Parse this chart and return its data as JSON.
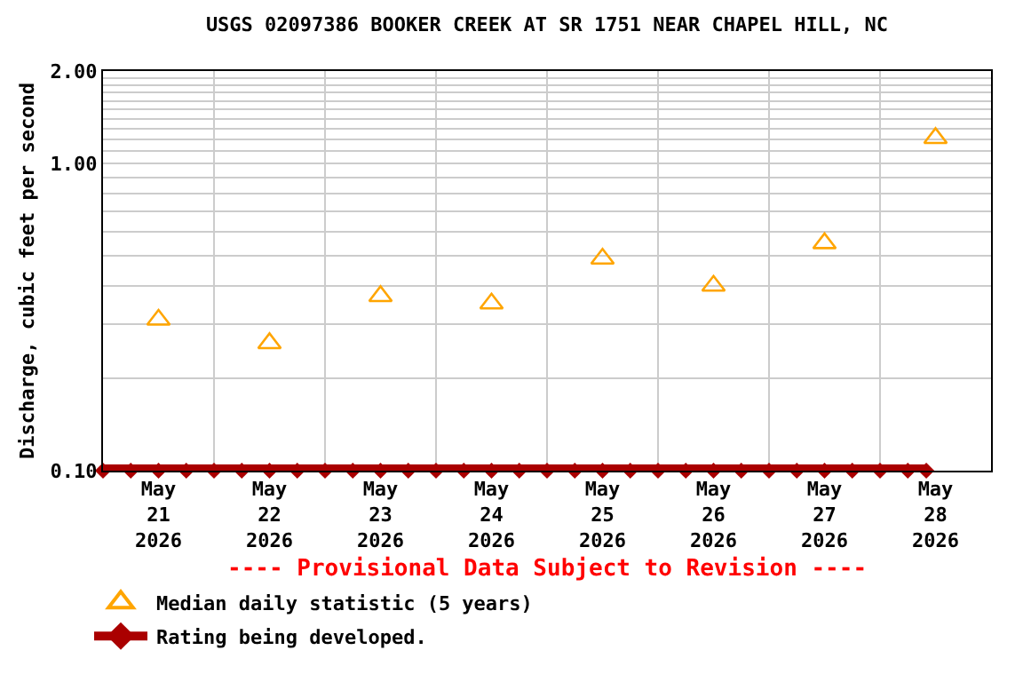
{
  "chart_data": {
    "type": "scatter",
    "title": "USGS 02097386 BOOKER CREEK AT SR 1751 NEAR CHAPEL HILL, NC",
    "ylabel": "Discharge, cubic feet per second",
    "log": "y",
    "grid": true,
    "legend": "bottom left",
    "annotations": [
      "---- Provisional Data Subject to Revision ----"
    ],
    "xlim": [
      "2026-05-21",
      "2026-05-29"
    ],
    "xticks": [
      {
        "value": "2026-05-21T12:00",
        "label": "May\n21\n2026"
      },
      {
        "value": "2026-05-22T12:00",
        "label": "May\n22\n2026"
      },
      {
        "value": "2026-05-23T12:00",
        "label": "May\n23\n2026"
      },
      {
        "value": "2026-05-24T12:00",
        "label": "May\n24\n2026"
      },
      {
        "value": "2026-05-25T12:00",
        "label": "May\n25\n2026"
      },
      {
        "value": "2026-05-26T12:00",
        "label": "May\n26\n2026"
      },
      {
        "value": "2026-05-27T12:00",
        "label": "May\n27\n2026"
      },
      {
        "value": "2026-05-28T12:00",
        "label": "May\n28\n2026"
      },
      {
        "value": "2026-05-22",
        "label": null
      },
      {
        "value": "2026-05-23",
        "label": null
      },
      {
        "value": "2026-05-24",
        "label": null
      },
      {
        "value": "2026-05-25",
        "label": null
      },
      {
        "value": "2026-05-26",
        "label": null
      },
      {
        "value": "2026-05-27",
        "label": null
      },
      {
        "value": "2026-05-28",
        "label": null
      }
    ],
    "ylim": [
      0.1,
      2.0
    ],
    "yticks": [
      {
        "value": 0.1,
        "label": "0.10"
      },
      {
        "value": 0.2,
        "label": null
      },
      {
        "value": 0.3,
        "label": null
      },
      {
        "value": 0.4,
        "label": null
      },
      {
        "value": 0.5,
        "label": null
      },
      {
        "value": 0.6,
        "label": null
      },
      {
        "value": 0.7,
        "label": null
      },
      {
        "value": 0.8,
        "label": null
      },
      {
        "value": 0.9,
        "label": null
      },
      {
        "value": 1.0,
        "label": "1.00"
      },
      {
        "value": 1.1,
        "label": null
      },
      {
        "value": 1.2,
        "label": null
      },
      {
        "value": 1.3,
        "label": null
      },
      {
        "value": 1.4,
        "label": null
      },
      {
        "value": 1.5,
        "label": null
      },
      {
        "value": 1.6,
        "label": null
      },
      {
        "value": 1.7,
        "label": null
      },
      {
        "value": 1.8,
        "label": null
      },
      {
        "value": 1.9,
        "label": null
      },
      {
        "value": 2.0,
        "label": "2.00"
      }
    ],
    "series": [
      {
        "name": "Median daily statistic (5 years)",
        "marker": "triangle",
        "color": "#ffa500",
        "x": [
          "2026-05-21T12:00",
          "2026-05-22T12:00",
          "2026-05-23T12:00",
          "2026-05-24T12:00",
          "2026-05-25T12:00",
          "2026-05-26T12:00",
          "2026-05-27T12:00",
          "2026-05-28T12:00"
        ],
        "values": [
          0.31,
          0.26,
          0.37,
          0.35,
          0.49,
          0.4,
          0.55,
          1.21
        ]
      },
      {
        "name": "Rating being developed.",
        "type": "line",
        "marker": "diamond",
        "color": "#aa0000",
        "x": [
          "2026-05-21T00:00",
          "2026-05-21T06:00",
          "2026-05-21T12:00",
          "2026-05-21T18:00",
          "2026-05-22T00:00",
          "2026-05-22T06:00",
          "2026-05-22T12:00",
          "2026-05-22T18:00",
          "2026-05-23T00:00",
          "2026-05-23T06:00",
          "2026-05-23T12:00",
          "2026-05-23T18:00",
          "2026-05-24T00:00",
          "2026-05-24T06:00",
          "2026-05-24T12:00",
          "2026-05-24T18:00",
          "2026-05-25T00:00",
          "2026-05-25T06:00",
          "2026-05-25T12:00",
          "2026-05-25T18:00",
          "2026-05-26T00:00",
          "2026-05-26T06:00",
          "2026-05-26T12:00",
          "2026-05-26T18:00",
          "2026-05-27T00:00",
          "2026-05-27T06:00",
          "2026-05-27T12:00",
          "2026-05-27T18:00",
          "2026-05-28T00:00",
          "2026-05-28T06:00",
          "2026-05-28T10:00"
        ],
        "values": [
          0.1,
          0.1,
          0.1,
          0.1,
          0.1,
          0.1,
          0.1,
          0.1,
          0.1,
          0.1,
          0.1,
          0.1,
          0.1,
          0.1,
          0.1,
          0.1,
          0.1,
          0.1,
          0.1,
          0.1,
          0.1,
          0.1,
          0.1,
          0.1,
          0.1,
          0.1,
          0.1,
          0.1,
          0.1,
          0.1,
          0.1
        ]
      }
    ]
  }
}
